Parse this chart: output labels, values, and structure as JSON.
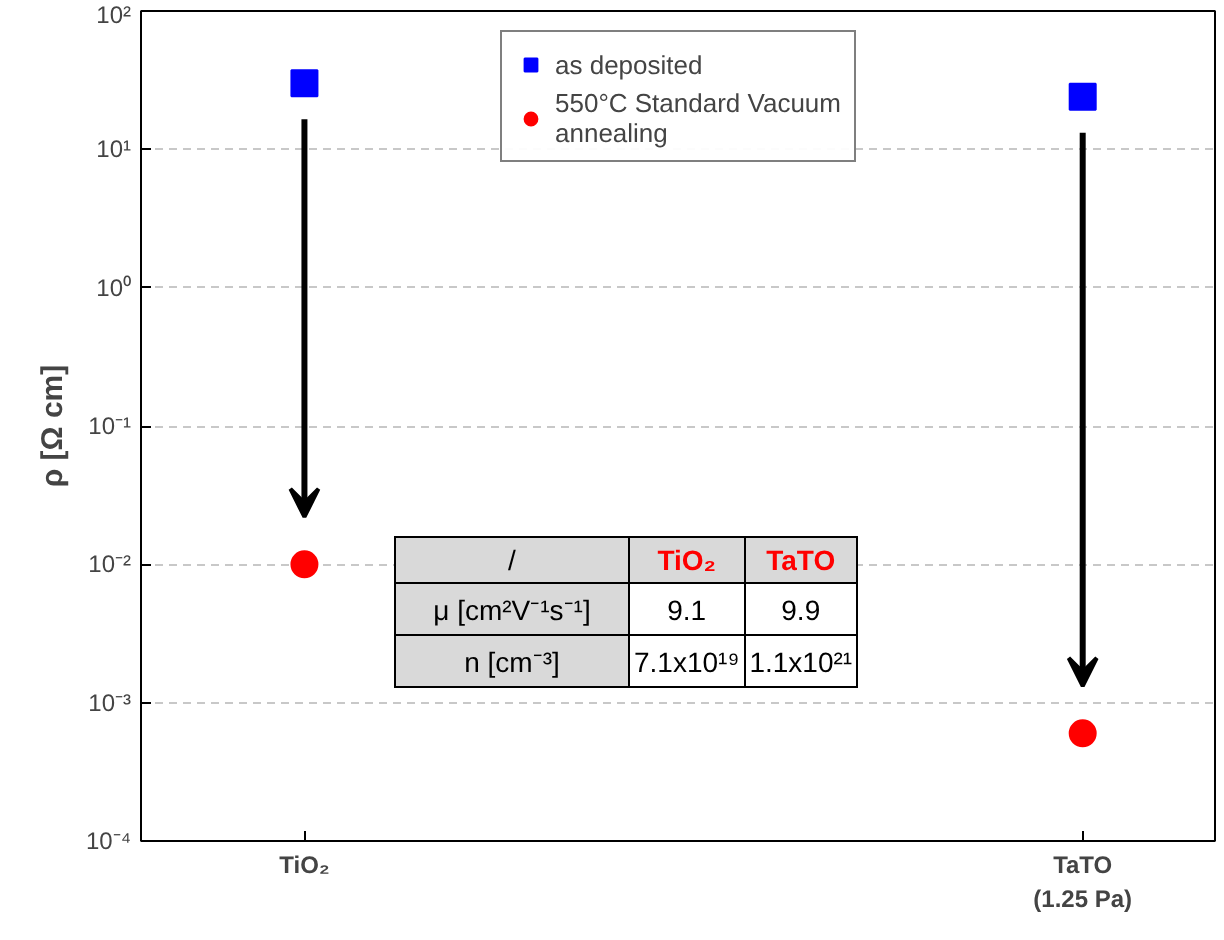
{
  "chart_data": {
    "type": "scatter",
    "ylabel": "ρ [Ω cm]",
    "categories": [
      "TiO₂",
      "TaTO\n(1.25 Pa)"
    ],
    "series": [
      {
        "name": "as deposited",
        "color": "#0000ff",
        "marker": "square",
        "values": [
          30,
          24
        ]
      },
      {
        "name": "550°C Standard Vacuum\nannealing",
        "color": "#ff0000",
        "marker": "circle",
        "values": [
          0.01,
          0.0006
        ]
      }
    ],
    "log": "y",
    "ylim": [
      0.0001,
      100
    ],
    "yticks": [
      {
        "value": 0.0001,
        "label": "10⁻⁴"
      },
      {
        "value": 0.001,
        "label": "10⁻³"
      },
      {
        "value": 0.01,
        "label": "10⁻²"
      },
      {
        "value": 0.1,
        "label": "10⁻¹"
      },
      {
        "value": 1,
        "label": "10⁰"
      },
      {
        "value": 10,
        "label": "10¹"
      },
      {
        "value": 100,
        "label": "10²"
      }
    ],
    "grid": "y",
    "legend": "top",
    "annotations": [
      "/",
      "TiO₂",
      "TaTO",
      "μ [cm²V⁻¹s⁻¹]",
      "9.1",
      "9.9",
      "n [cm⁻³]",
      "7.1x10¹⁹",
      "1.1x10²¹"
    ]
  }
}
